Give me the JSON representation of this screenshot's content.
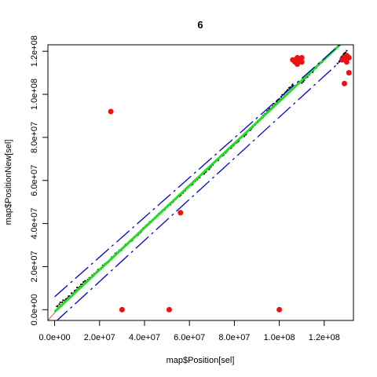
{
  "chart_data": {
    "type": "scatter",
    "title": "6",
    "xlabel": "map$Position[sel]",
    "ylabel": "map$PositionNew[sel]",
    "xlim": [
      -3000000,
      133000000
    ],
    "ylim": [
      -5000000,
      123000000
    ],
    "x_ticks": [
      0,
      20000000,
      40000000,
      60000000,
      80000000,
      100000000,
      120000000
    ],
    "x_tick_labels": [
      "0.0e+00",
      "2.0e+07",
      "4.0e+07",
      "6.0e+07",
      "8.0e+07",
      "1.0e+08",
      "1.2e+08"
    ],
    "y_ticks": [
      0,
      20000000,
      40000000,
      60000000,
      80000000,
      100000000,
      120000000
    ],
    "y_tick_labels": [
      "0.0e+00",
      "2.0e+07",
      "4.0e+07",
      "6.0e+07",
      "8.0e+07",
      "1.0e+08",
      "1.2e+08"
    ],
    "grid": false,
    "colors": {
      "points": "#000000",
      "outliers": "#ee1111",
      "fit": "#22dd22",
      "bounds": "#0000cc",
      "identity": "#ff4444"
    },
    "lines": [
      {
        "role": "identity",
        "style": "solid",
        "x": [
          -3000000,
          2000000
        ],
        "y": [
          -5000000,
          1000000
        ]
      },
      {
        "role": "fit",
        "style": "solid",
        "x": [
          0,
          129000000
        ],
        "y": [
          -1000000,
          125000000
        ]
      },
      {
        "role": "upper-bound",
        "style": "dashed",
        "x": [
          0,
          128000000
        ],
        "y": [
          6000000,
          124000000
        ]
      },
      {
        "role": "lower-bound",
        "style": "dashed",
        "x": [
          0,
          130000000
        ],
        "y": [
          -6000000,
          118000000
        ]
      }
    ],
    "dense_points": [
      {
        "x": [
          1000000,
          25000000,
          55000000,
          85000000,
          106000000
        ],
        "y": [
          1000000,
          23000000,
          52000000,
          81000000,
          104000000
        ]
      },
      {
        "x": [
          110000000,
          120000000
        ],
        "y": [
          105000000,
          116000000
        ]
      },
      {
        "x": [
          126000000,
          130000000
        ],
        "y": [
          114000000,
          120000000
        ]
      }
    ],
    "outliers": {
      "x": [
        25000000,
        56000000,
        30000000,
        51000000,
        100000000,
        107000000,
        108000000,
        109000000,
        110000000,
        106000000,
        108000000,
        110000000,
        129000000,
        131000000,
        130000000,
        128000000,
        129000000,
        130000000,
        131000000
      ],
      "y": [
        92000000,
        45000000,
        0,
        0,
        0,
        115000000,
        117000000,
        116000000,
        117000000,
        116000000,
        114000000,
        115000000,
        117000000,
        117000000,
        118000000,
        116000000,
        105000000,
        115000000,
        110000000
      ]
    }
  }
}
